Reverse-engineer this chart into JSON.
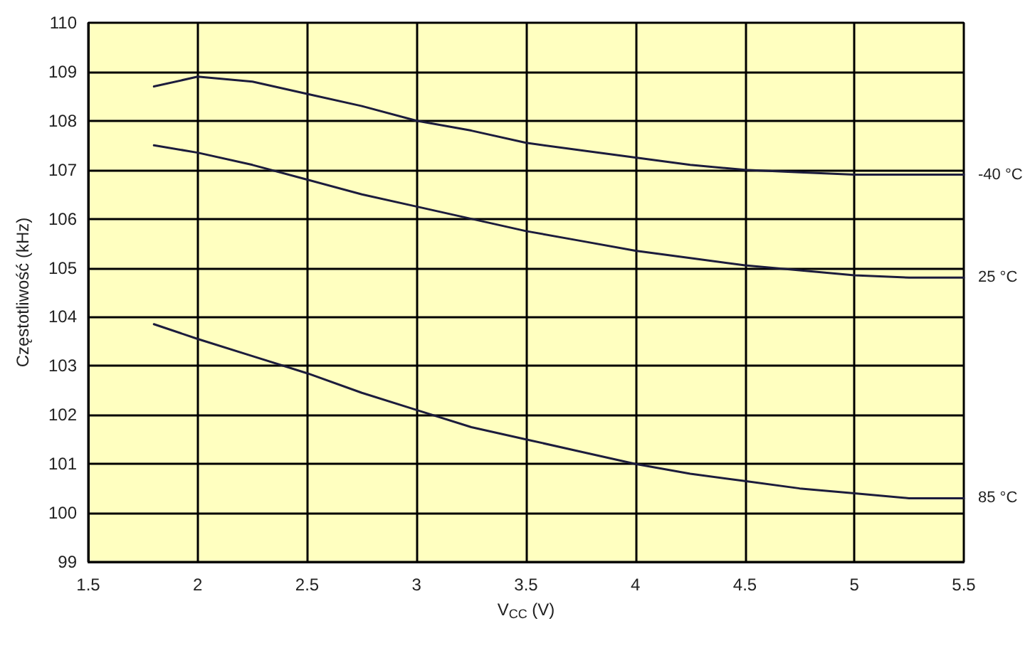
{
  "chart_data": {
    "type": "line",
    "xlabel": "V$_{CC}$ (V)",
    "ylabel": "Częstotliwość (kHz)",
    "x": [
      1.8,
      2.0,
      2.25,
      2.5,
      2.75,
      3.0,
      3.25,
      3.5,
      3.75,
      4.0,
      4.25,
      4.5,
      4.75,
      5.0,
      5.25,
      5.5
    ],
    "series": [
      {
        "name": "-40 °C",
        "color": "#1c1c3c",
        "values": [
          108.7,
          108.9,
          108.8,
          108.55,
          108.3,
          108.0,
          107.8,
          107.55,
          107.4,
          107.25,
          107.1,
          107.0,
          106.95,
          106.9,
          106.9,
          106.9
        ]
      },
      {
        "name": "25 °C",
        "color": "#1c1c3c",
        "values": [
          107.5,
          107.35,
          107.1,
          106.8,
          106.5,
          106.25,
          106.0,
          105.75,
          105.55,
          105.35,
          105.2,
          105.05,
          104.95,
          104.85,
          104.8,
          104.8
        ]
      },
      {
        "name": "85 °C",
        "color": "#1c1c3c",
        "values": [
          103.85,
          103.55,
          103.2,
          102.85,
          102.45,
          102.1,
          101.75,
          101.5,
          101.25,
          101.0,
          100.8,
          100.65,
          100.5,
          100.4,
          100.3,
          100.3
        ]
      }
    ],
    "xlim": [
      1.5,
      5.5
    ],
    "xticks": [
      1.5,
      2,
      2.5,
      3,
      3.5,
      4,
      4.5,
      5,
      5.5
    ],
    "ylim": [
      99,
      110
    ],
    "yticks": [
      99,
      100,
      101,
      102,
      103,
      104,
      105,
      106,
      107,
      108,
      109,
      110
    ],
    "grid": true,
    "marker": "none",
    "line_style": "solid"
  }
}
